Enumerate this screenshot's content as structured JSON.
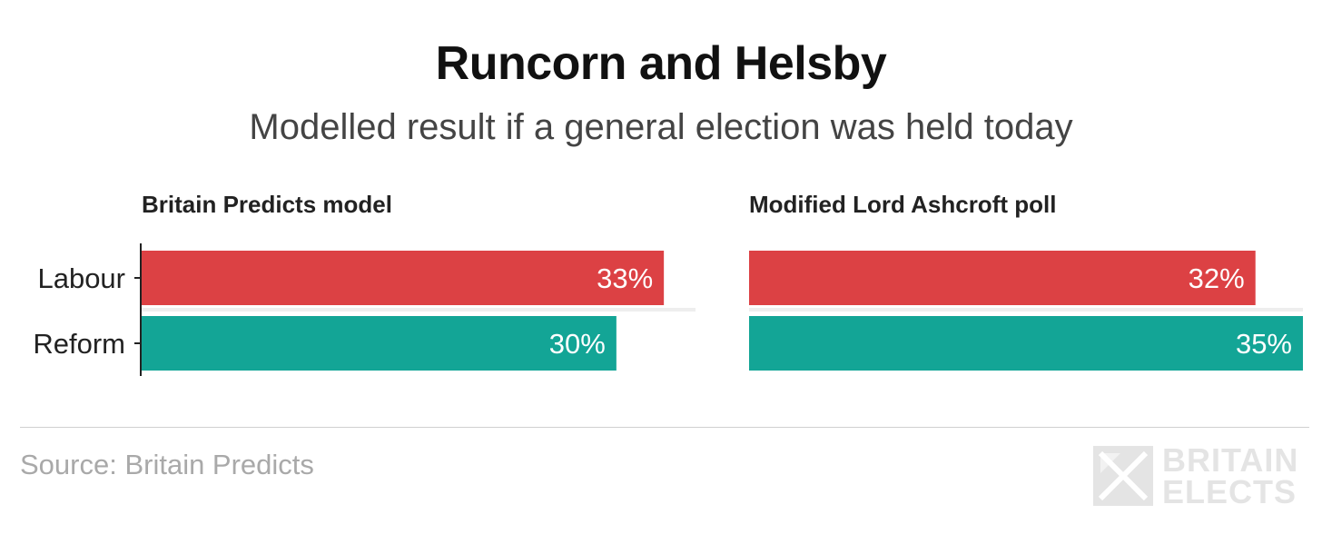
{
  "header": {
    "title": "Runcorn and Helsby",
    "subtitle": "Modelled result if a general election was held today"
  },
  "chart_data": {
    "type": "bar",
    "orientation": "horizontal",
    "categories": [
      "Labour",
      "Reform"
    ],
    "colors": {
      "Labour": "#dc4144",
      "Reform": "#13a596"
    },
    "xlim": [
      0,
      35
    ],
    "panels": [
      {
        "title": "Britain Predicts model",
        "values": [
          33,
          30
        ],
        "labels": [
          "33%",
          "30%"
        ]
      },
      {
        "title": "Modified Lord Ashcroft poll",
        "values": [
          32,
          35
        ],
        "labels": [
          "32%",
          "35%"
        ]
      }
    ]
  },
  "footer": {
    "source": "Source: Britain Predicts",
    "logo_line1": "BRITAIN",
    "logo_line2": "ELECTS"
  }
}
